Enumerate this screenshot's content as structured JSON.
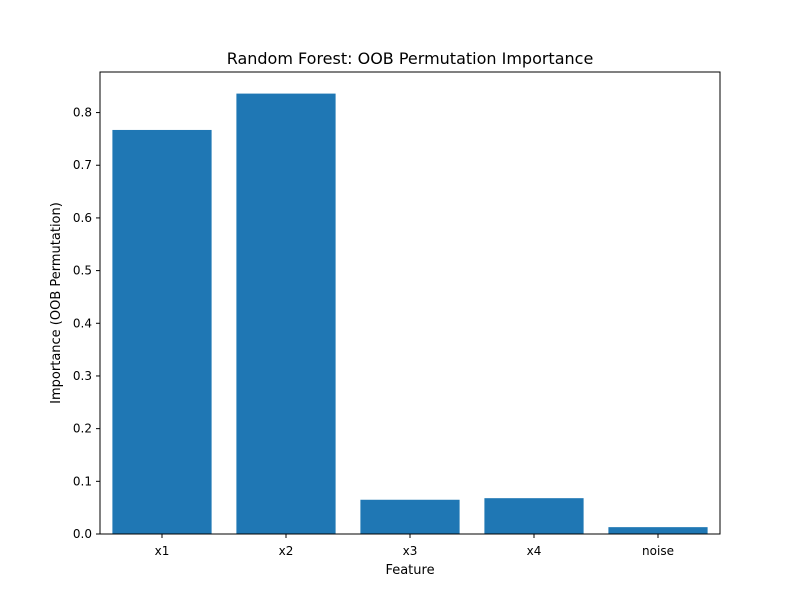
{
  "chart_data": {
    "type": "bar",
    "title": "Random Forest: OOB Permutation Importance",
    "xlabel": "Feature",
    "ylabel": "Importance (OOB Permutation)",
    "categories": [
      "x1",
      "x2",
      "x3",
      "x4",
      "noise"
    ],
    "values": [
      0.767,
      0.836,
      0.065,
      0.068,
      0.013
    ],
    "ylim": [
      0,
      0.877
    ],
    "yticks": [
      0.0,
      0.1,
      0.2,
      0.3,
      0.4,
      0.5,
      0.6,
      0.7,
      0.8
    ],
    "ytick_labels": [
      "0.0",
      "0.1",
      "0.2",
      "0.3",
      "0.4",
      "0.5",
      "0.6",
      "0.7",
      "0.8"
    ],
    "grid": false,
    "bar_color": "#1f77b4"
  }
}
